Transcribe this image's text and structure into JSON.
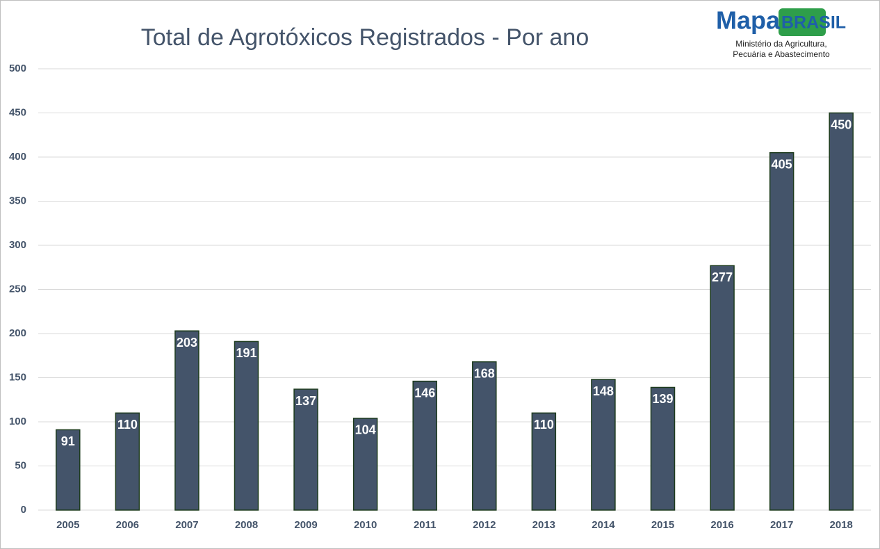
{
  "chart_data": {
    "type": "bar",
    "title": "Total de Agrotóxicos Registrados  - Por ano",
    "logo": {
      "name_left": "Mapa",
      "name_right": "BRASIL",
      "subtitle_lines": [
        "Ministério da Agricultura,",
        "Pecuária e Abastecimento"
      ]
    },
    "categories": [
      "2005",
      "2006",
      "2007",
      "2008",
      "2009",
      "2010",
      "2011",
      "2012",
      "2013",
      "2014",
      "2015",
      "2016",
      "2017",
      "2018"
    ],
    "values": [
      91,
      110,
      203,
      191,
      137,
      104,
      146,
      168,
      110,
      148,
      139,
      277,
      405,
      450
    ],
    "color": "#44546a",
    "ylim": [
      0,
      500
    ],
    "yticks": [
      0,
      50,
      100,
      150,
      200,
      250,
      300,
      350,
      400,
      450,
      500
    ],
    "grid": true
  }
}
